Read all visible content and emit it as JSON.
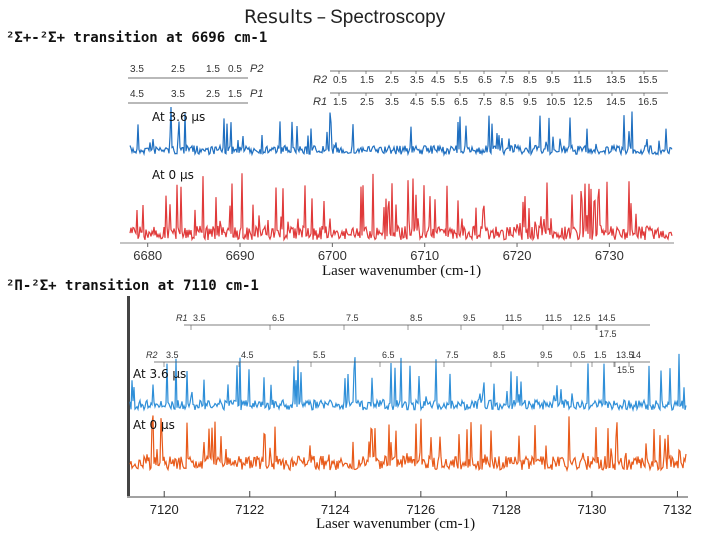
{
  "title": "Results",
  "subtitle": "Spectroscopy",
  "separator": "–",
  "panels": [
    {
      "heading": "²Σ+-²Σ+ transition at 6696 cm-1",
      "time_labels": [
        "At 3.6 µs",
        "At 0 µs"
      ],
      "xlabel": "Laser wavenumber (cm-1)",
      "x_ticks": [
        "6680",
        "6690",
        "6700",
        "6710",
        "6720",
        "6730"
      ],
      "left_branches": [
        {
          "label": "P2",
          "values": [
            "3.5",
            "2.5",
            "1.5",
            "0.5"
          ]
        },
        {
          "label": "P1",
          "values": [
            "4.5",
            "3.5",
            "2.5",
            "1.5"
          ]
        }
      ],
      "right_branches": [
        {
          "label": "R2",
          "values": [
            "0.5",
            "1.5",
            "2.5",
            "3.5",
            "4.5",
            "5.5",
            "6.5",
            "7.5",
            "8.5",
            "9.5",
            "11.5",
            "13.5",
            "15.5"
          ]
        },
        {
          "label": "R1",
          "values": [
            "1.5",
            "2.5",
            "3.5",
            "4.5",
            "5.5",
            "6.5",
            "7.5",
            "8.5",
            "9.5",
            "10.5",
            "12.5",
            "14.5",
            "16.5"
          ]
        }
      ]
    },
    {
      "heading": "²Π-²Σ+ transition at 7110 cm-1",
      "time_labels": [
        "At 3.6 µs",
        "At 0 µs"
      ],
      "xlabel": "Laser wavenumber (cm-1)",
      "x_ticks": [
        "7120",
        "7122",
        "7124",
        "7126",
        "7128",
        "7130",
        "7132"
      ],
      "branches": [
        {
          "label": "R1",
          "values": [
            "3.5",
            "6.5",
            "7.5",
            "8.5",
            "9.5",
            "11.5",
            "11.5",
            "12.5",
            "14.5",
            "17.5"
          ]
        },
        {
          "label": "R2",
          "values": [
            "3.5",
            "4.5",
            "5.5",
            "6.5",
            "7.5",
            "8.5",
            "9.5",
            "0.5",
            "1.5",
            "13.5",
            "14",
            "15.5"
          ]
        }
      ]
    }
  ],
  "chart_data": [
    {
      "type": "line",
      "title": "²Σ+-²Σ+ transition at 6696 cm-1",
      "xlabel": "Laser wavenumber (cm-1)",
      "ylabel": "",
      "xlim": [
        6677,
        6737
      ],
      "grid": false,
      "series": [
        {
          "name": "At 3.6 µs",
          "color": "#1f6fc0",
          "x": [
            6680,
            6737
          ],
          "values": [
            0,
            0
          ]
        },
        {
          "name": "At 0 µs",
          "color": "#e03a3a",
          "x": [
            6680,
            6737
          ],
          "values": [
            0,
            0
          ]
        }
      ]
    },
    {
      "type": "line",
      "title": "²Π-²Σ+ transition at 7110 cm-1",
      "xlabel": "Laser wavenumber (cm-1)",
      "ylabel": "",
      "xlim": [
        7119.2,
        7132.2
      ],
      "grid": false,
      "series": [
        {
          "name": "At 3.6 µs",
          "color": "#2f8fd8",
          "x": [
            7120,
            7132
          ],
          "values": [
            0,
            0
          ]
        },
        {
          "name": "At 0 µs",
          "color": "#e85a1a",
          "x": [
            7120,
            7132
          ],
          "values": [
            0,
            0
          ]
        }
      ]
    }
  ]
}
